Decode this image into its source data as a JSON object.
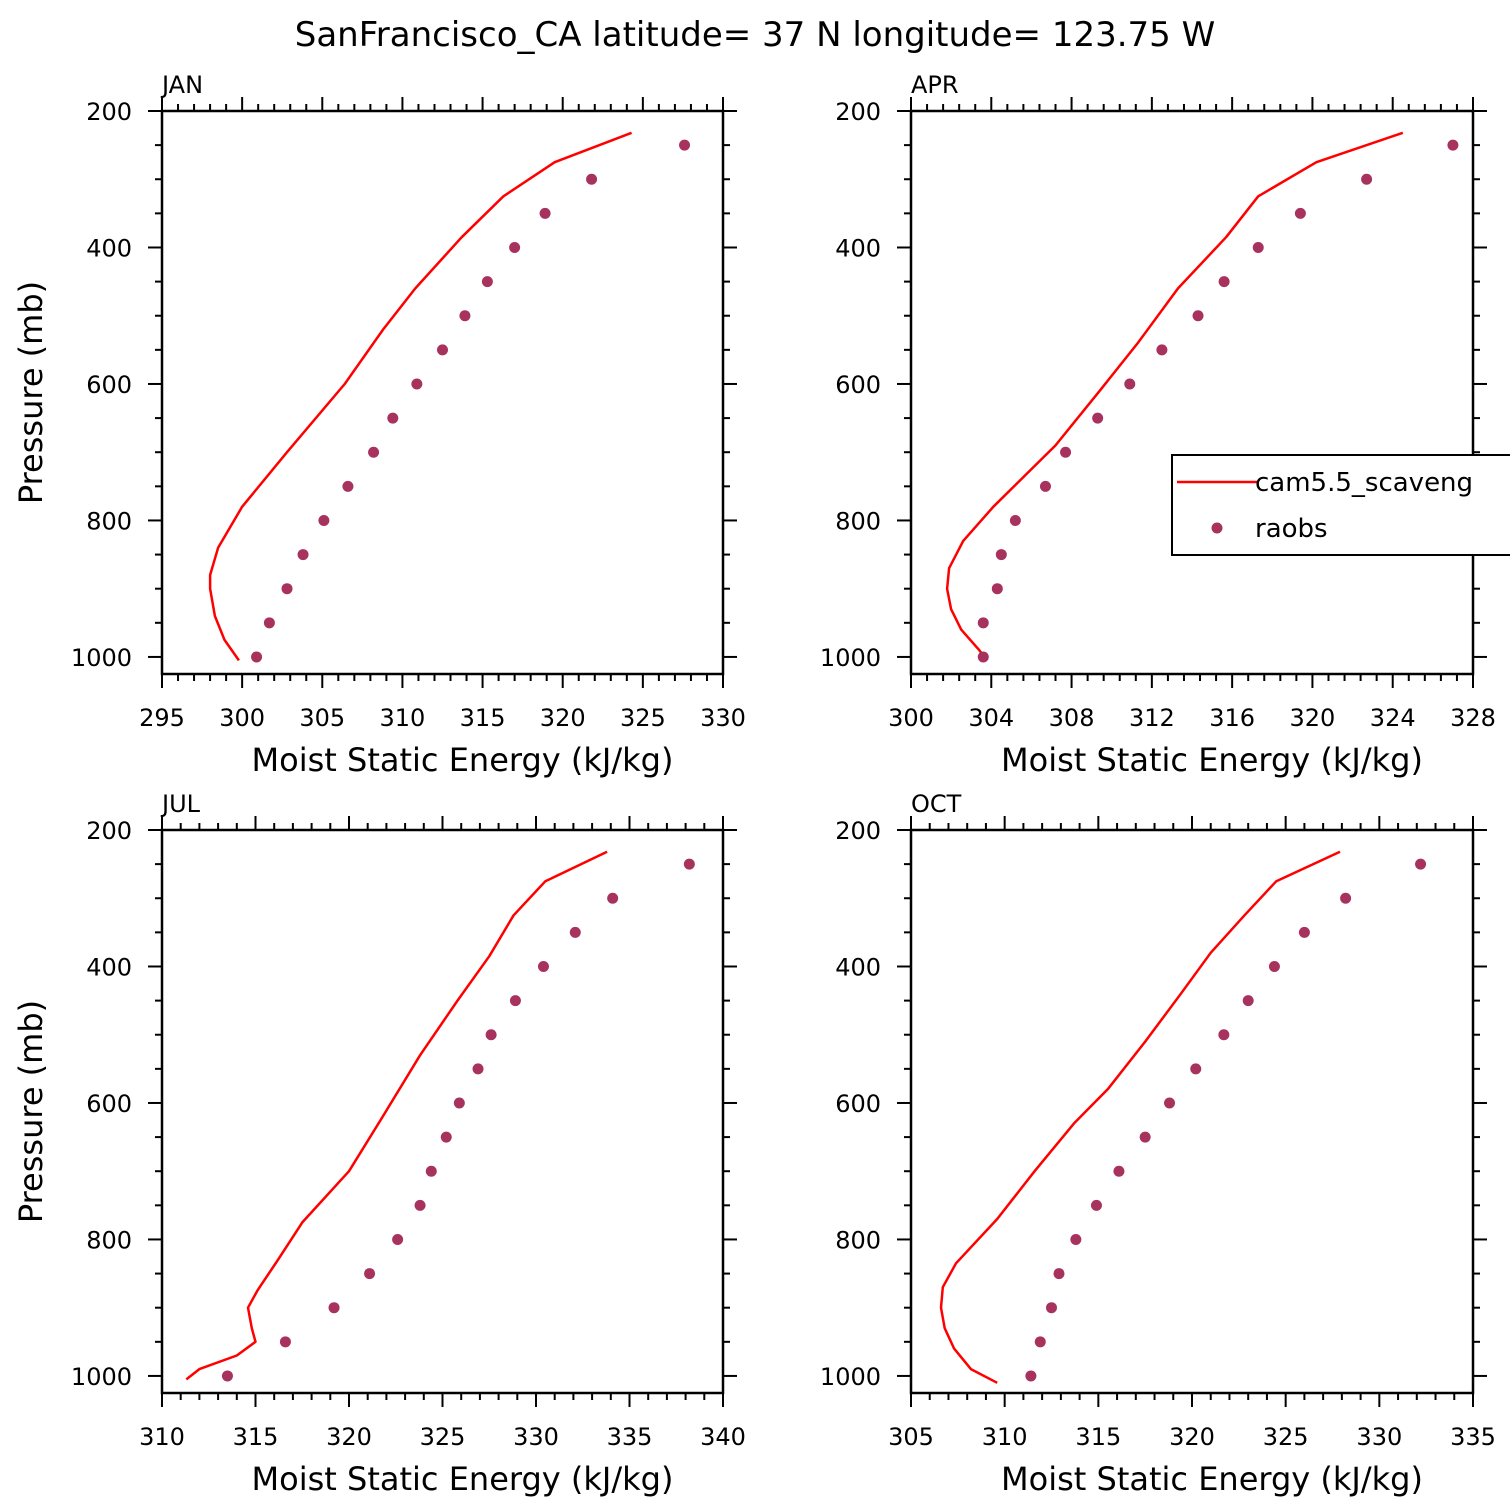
{
  "figure_title": "SanFrancisco_CA  latitude= 37 N longitude= 123.75 W",
  "colors": {
    "model_line": "#ff0000",
    "obs_dot": "#a8325e"
  },
  "legend": {
    "placement": "right-middle of APR panel",
    "entries": [
      {
        "label": "cam5.5_scaveng",
        "marker": "line",
        "color": "#ff0000"
      },
      {
        "label": "raobs",
        "marker": "dot",
        "color": "#a8325e"
      }
    ]
  },
  "chart_data": [
    {
      "type": "line",
      "panel_label": "JAN",
      "xlabel": "Moist Static Energy (kJ/kg)",
      "ylabel": "Pressure (mb)",
      "xlim": [
        295,
        330
      ],
      "ylim": [
        200,
        1025
      ],
      "x_ticks": [
        295,
        300,
        305,
        310,
        315,
        320,
        325,
        330
      ],
      "y_ticks": [
        200,
        400,
        600,
        800,
        1000
      ],
      "series": [
        {
          "name": "cam5.5_scaveng",
          "kind": "line",
          "points": [
            [
              324.3,
              232
            ],
            [
              319.5,
              275
            ],
            [
              316.3,
              325
            ],
            [
              313.7,
              385
            ],
            [
              310.8,
              460
            ],
            [
              308.8,
              520
            ],
            [
              306.4,
              600
            ],
            [
              302.8,
              700
            ],
            [
              300.0,
              780
            ],
            [
              298.5,
              840
            ],
            [
              298.0,
              880
            ],
            [
              298.0,
              900
            ],
            [
              298.3,
              940
            ],
            [
              298.9,
              975
            ],
            [
              299.8,
              1005
            ]
          ]
        },
        {
          "name": "raobs",
          "kind": "scatter",
          "points": [
            [
              327.6,
              250
            ],
            [
              321.8,
              300
            ],
            [
              318.9,
              350
            ],
            [
              317.0,
              400
            ],
            [
              315.3,
              450
            ],
            [
              313.9,
              500
            ],
            [
              312.5,
              550
            ],
            [
              310.9,
              600
            ],
            [
              309.4,
              650
            ],
            [
              308.2,
              700
            ],
            [
              306.6,
              750
            ],
            [
              305.1,
              800
            ],
            [
              303.8,
              850
            ],
            [
              302.8,
              900
            ],
            [
              301.7,
              950
            ],
            [
              300.9,
              1000
            ]
          ]
        }
      ]
    },
    {
      "type": "line",
      "panel_label": "APR",
      "xlabel": "Moist Static Energy (kJ/kg)",
      "ylabel": "",
      "xlim": [
        300,
        328
      ],
      "ylim": [
        200,
        1025
      ],
      "x_ticks": [
        300,
        304,
        308,
        312,
        316,
        320,
        324,
        328
      ],
      "y_ticks": [
        200,
        400,
        600,
        800,
        1000
      ],
      "series": [
        {
          "name": "cam5.5_scaveng",
          "kind": "line",
          "points": [
            [
              324.5,
              232
            ],
            [
              320.2,
              275
            ],
            [
              317.3,
              325
            ],
            [
              315.7,
              385
            ],
            [
              313.3,
              460
            ],
            [
              311.3,
              540
            ],
            [
              309.4,
              610
            ],
            [
              307.2,
              690
            ],
            [
              304.1,
              780
            ],
            [
              302.6,
              830
            ],
            [
              301.9,
              870
            ],
            [
              301.8,
              900
            ],
            [
              302.0,
              930
            ],
            [
              302.5,
              960
            ],
            [
              303.4,
              990
            ],
            [
              303.8,
              1005
            ]
          ]
        },
        {
          "name": "raobs",
          "kind": "scatter",
          "points": [
            [
              327.0,
              250
            ],
            [
              322.7,
              300
            ],
            [
              319.4,
              350
            ],
            [
              317.3,
              400
            ],
            [
              315.6,
              450
            ],
            [
              314.3,
              500
            ],
            [
              312.5,
              550
            ],
            [
              310.9,
              600
            ],
            [
              309.3,
              650
            ],
            [
              307.7,
              700
            ],
            [
              306.7,
              750
            ],
            [
              305.2,
              800
            ],
            [
              304.5,
              850
            ],
            [
              304.3,
              900
            ],
            [
              303.6,
              950
            ],
            [
              303.6,
              1000
            ]
          ]
        }
      ]
    },
    {
      "type": "line",
      "panel_label": "JUL",
      "xlabel": "Moist Static Energy (kJ/kg)",
      "ylabel": "Pressure (mb)",
      "xlim": [
        310,
        340
      ],
      "ylim": [
        200,
        1025
      ],
      "x_ticks": [
        310,
        315,
        320,
        325,
        330,
        335,
        340
      ],
      "y_ticks": [
        200,
        400,
        600,
        800,
        1000
      ],
      "series": [
        {
          "name": "cam5.5_scaveng",
          "kind": "line",
          "points": [
            [
              333.8,
              232
            ],
            [
              330.5,
              275
            ],
            [
              328.8,
              325
            ],
            [
              327.5,
              385
            ],
            [
              325.8,
              450
            ],
            [
              323.8,
              530
            ],
            [
              321.8,
              620
            ],
            [
              320.0,
              700
            ],
            [
              317.5,
              775
            ],
            [
              316.2,
              830
            ],
            [
              315.1,
              875
            ],
            [
              314.6,
              900
            ],
            [
              314.8,
              930
            ],
            [
              315.0,
              950
            ],
            [
              314.0,
              970
            ],
            [
              312.0,
              990
            ],
            [
              311.3,
              1005
            ]
          ]
        },
        {
          "name": "raobs",
          "kind": "scatter",
          "points": [
            [
              338.2,
              250
            ],
            [
              334.1,
              300
            ],
            [
              332.1,
              350
            ],
            [
              330.4,
              400
            ],
            [
              328.9,
              450
            ],
            [
              327.6,
              500
            ],
            [
              326.9,
              550
            ],
            [
              325.9,
              600
            ],
            [
              325.2,
              650
            ],
            [
              324.4,
              700
            ],
            [
              323.8,
              750
            ],
            [
              322.6,
              800
            ],
            [
              321.1,
              850
            ],
            [
              319.2,
              900
            ],
            [
              316.6,
              950
            ],
            [
              313.5,
              1000
            ]
          ]
        }
      ]
    },
    {
      "type": "line",
      "panel_label": "OCT",
      "xlabel": "Moist Static Energy (kJ/kg)",
      "ylabel": "",
      "xlim": [
        305,
        335
      ],
      "ylim": [
        200,
        1025
      ],
      "x_ticks": [
        305,
        310,
        315,
        320,
        325,
        330,
        335
      ],
      "y_ticks": [
        200,
        400,
        600,
        800,
        1000
      ],
      "series": [
        {
          "name": "cam5.5_scaveng",
          "kind": "line",
          "points": [
            [
              327.9,
              232
            ],
            [
              324.5,
              275
            ],
            [
              322.8,
              325
            ],
            [
              321.0,
              380
            ],
            [
              319.4,
              440
            ],
            [
              317.5,
              510
            ],
            [
              315.5,
              580
            ],
            [
              313.7,
              630
            ],
            [
              311.6,
              700
            ],
            [
              309.6,
              770
            ],
            [
              307.4,
              835
            ],
            [
              306.7,
              870
            ],
            [
              306.6,
              900
            ],
            [
              306.8,
              930
            ],
            [
              307.3,
              960
            ],
            [
              308.2,
              990
            ],
            [
              309.6,
              1010
            ]
          ]
        },
        {
          "name": "raobs",
          "kind": "scatter",
          "points": [
            [
              332.2,
              250
            ],
            [
              328.2,
              300
            ],
            [
              326.0,
              350
            ],
            [
              324.4,
              400
            ],
            [
              323.0,
              450
            ],
            [
              321.7,
              500
            ],
            [
              320.2,
              550
            ],
            [
              318.8,
              600
            ],
            [
              317.5,
              650
            ],
            [
              316.1,
              700
            ],
            [
              314.9,
              750
            ],
            [
              313.8,
              800
            ],
            [
              312.9,
              850
            ],
            [
              312.5,
              900
            ],
            [
              311.9,
              950
            ],
            [
              311.4,
              1000
            ]
          ]
        }
      ]
    }
  ]
}
